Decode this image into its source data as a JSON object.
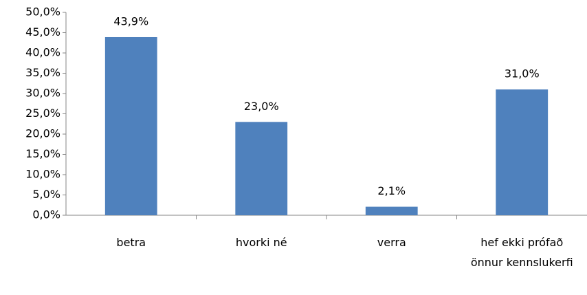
{
  "chart_data": {
    "type": "bar",
    "categories": [
      "betra",
      "hvorki né",
      "verra",
      "hef ekki prófað önnur kennslukerfi"
    ],
    "values": [
      43.9,
      23.0,
      2.1,
      31.0
    ],
    "value_labels": [
      "43,9%",
      "23,0%",
      "2,1%",
      "31,0%"
    ],
    "color": "#4f81bd",
    "ylim": [
      0,
      50
    ],
    "yticks": [
      {
        "value": 0,
        "label": "0,0%"
      },
      {
        "value": 5,
        "label": "5,0%"
      },
      {
        "value": 10,
        "label": "10,0%"
      },
      {
        "value": 15,
        "label": "15,0%"
      },
      {
        "value": 20,
        "label": "20,0%"
      },
      {
        "value": 25,
        "label": "25,0%"
      },
      {
        "value": 30,
        "label": "30,0%"
      },
      {
        "value": 35,
        "label": "35,0%"
      },
      {
        "value": 40,
        "label": "40,0%"
      },
      {
        "value": 45,
        "label": "45,0%"
      },
      {
        "value": 50,
        "label": "50,0%"
      }
    ],
    "grid": false
  }
}
